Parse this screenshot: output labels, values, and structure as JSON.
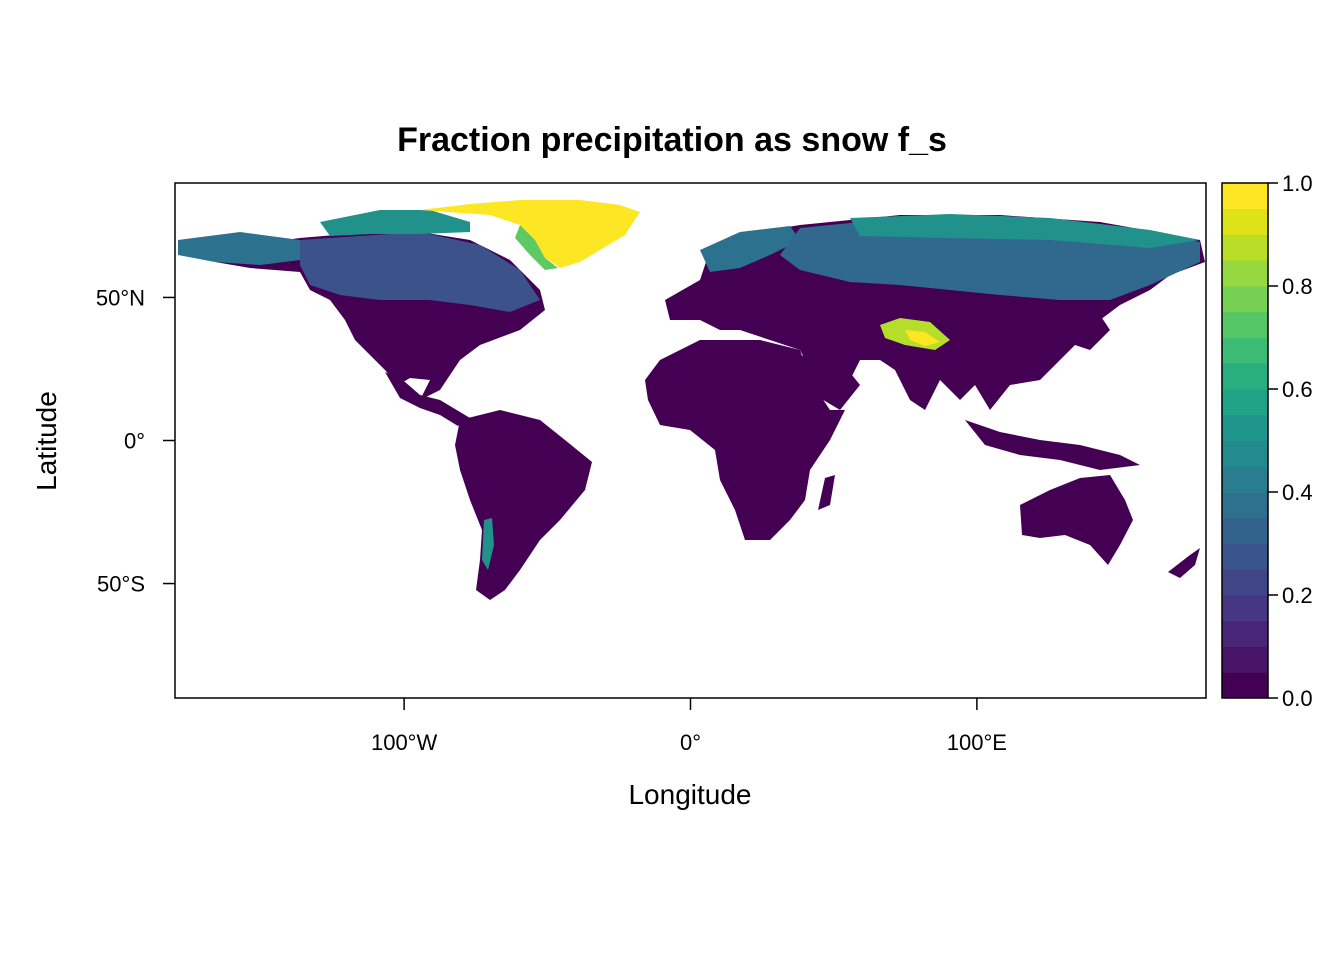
{
  "chart_data": {
    "type": "heatmap",
    "title": "Fraction precipitation as snow f_s",
    "xlabel": "Longitude",
    "ylabel": "Latitude",
    "xlim": [
      -180,
      180
    ],
    "ylim": [
      -90,
      90
    ],
    "x_ticks": [
      {
        "value": -100,
        "label": "100°W"
      },
      {
        "value": 0,
        "label": "0°"
      },
      {
        "value": 100,
        "label": "100°E"
      }
    ],
    "y_ticks": [
      {
        "value": 50,
        "label": "50°N"
      },
      {
        "value": 0,
        "label": "0°"
      },
      {
        "value": -50,
        "label": "50°S"
      }
    ],
    "colorbar": {
      "min": 0.0,
      "max": 1.0,
      "steps": 20,
      "ticks": [
        "0.0",
        "0.2",
        "0.4",
        "0.6",
        "0.8",
        "1.0"
      ],
      "palette": "viridis",
      "low_color": "#440154",
      "high_color": "#FDE725"
    },
    "regions": [
      {
        "name": "Greenland ice sheet",
        "value": 0.97
      },
      {
        "name": "Arctic Canada",
        "value": 0.55
      },
      {
        "name": "Northern Siberia",
        "value": 0.55
      },
      {
        "name": "Alaska",
        "value": 0.45
      },
      {
        "name": "Canada",
        "value": 0.3
      },
      {
        "name": "Scandinavia",
        "value": 0.3
      },
      {
        "name": "Siberia",
        "value": 0.3
      },
      {
        "name": "Tibetan Plateau",
        "value": 0.85
      },
      {
        "name": "Andes (south)",
        "value": 0.45
      },
      {
        "name": "Tropics and subtropics",
        "value": 0.0
      }
    ]
  }
}
